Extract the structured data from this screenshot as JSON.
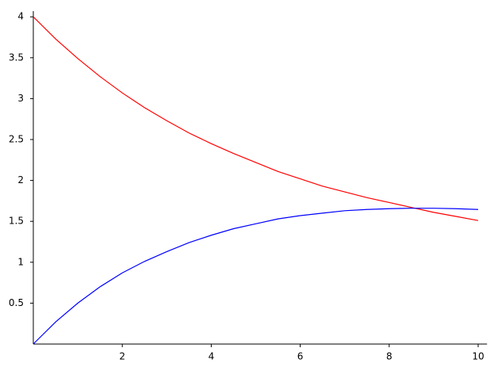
{
  "chart_data": {
    "type": "line",
    "x": [
      0,
      0.5,
      1,
      1.5,
      2,
      2.5,
      3,
      3.5,
      4,
      4.5,
      5,
      5.5,
      6,
      6.5,
      7,
      7.5,
      8,
      8.5,
      9,
      9.5,
      10
    ],
    "series": [
      {
        "color": "#ff0000",
        "values": [
          4.0,
          3.73,
          3.49,
          3.27,
          3.07,
          2.89,
          2.73,
          2.58,
          2.45,
          2.33,
          2.22,
          2.11,
          2.02,
          1.93,
          1.86,
          1.79,
          1.73,
          1.67,
          1.61,
          1.56,
          1.51
        ]
      },
      {
        "color": "#0000ff",
        "values": [
          0,
          0.27,
          0.5,
          0.7,
          0.87,
          1.01,
          1.13,
          1.24,
          1.33,
          1.41,
          1.47,
          1.53,
          1.57,
          1.6,
          1.63,
          1.645,
          1.655,
          1.66,
          1.66,
          1.655,
          1.645
        ]
      }
    ],
    "xlim": [
      0,
      10.2
    ],
    "ylim": [
      0,
      4.07
    ],
    "xticks": [
      2,
      4,
      6,
      8,
      10
    ],
    "yticks": [
      0.5,
      1,
      1.5,
      2,
      2.5,
      3,
      3.5,
      4
    ]
  }
}
